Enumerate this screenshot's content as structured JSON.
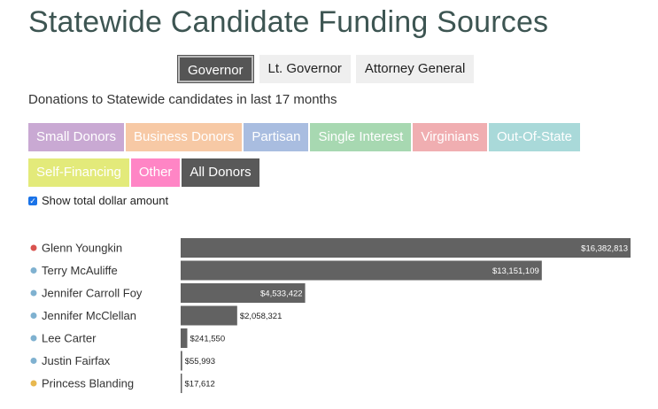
{
  "header": {
    "title": "Statewide Candidate Funding Sources"
  },
  "office_tabs": [
    {
      "label": "Governor",
      "active": true
    },
    {
      "label": "Lt. Governor",
      "active": false
    },
    {
      "label": "Attorney General",
      "active": false
    }
  ],
  "subtitle": "Donations to Statewide candidates in last 17 months",
  "filters": [
    {
      "label": "Small Donors",
      "color": "#c9a9d3"
    },
    {
      "label": "Business Donors",
      "color": "#f7c9a5"
    },
    {
      "label": "Partisan",
      "color": "#a9bde0"
    },
    {
      "label": "Single Interest",
      "color": "#a7d8b1"
    },
    {
      "label": "Virginians",
      "color": "#f0aeb1"
    },
    {
      "label": "Out-Of-State",
      "color": "#a9d9d9"
    },
    {
      "label": "Self-Financing",
      "color": "#e3ea7a"
    },
    {
      "label": "Other",
      "color": "#ff85c5"
    },
    {
      "label": "All Donors",
      "color": "#595959",
      "active": true
    }
  ],
  "checkbox": {
    "label": "Show total dollar amount",
    "checked": true
  },
  "chart_data": {
    "type": "bar",
    "orientation": "horizontal",
    "bar_color": "#626262",
    "xlim": [
      0,
      16382813
    ],
    "categories": [
      "Glenn Youngkin",
      "Terry McAuliffe",
      "Jennifer Carroll Foy",
      "Jennifer McClellan",
      "Lee Carter",
      "Justin Fairfax",
      "Princess Blanding"
    ],
    "values": [
      16382813,
      13151109,
      4533422,
      2058321,
      241550,
      55993,
      17612
    ],
    "value_labels": [
      "$16,382,813",
      "$13,151,109",
      "$4,533,422",
      "$2,058,321",
      "$241,550",
      "$55,993",
      "$17,612"
    ],
    "party_colors": [
      "#d9534f",
      "#7fb1d0",
      "#7fb1d0",
      "#7fb1d0",
      "#7fb1d0",
      "#7fb1d0",
      "#e8b84f"
    ]
  }
}
